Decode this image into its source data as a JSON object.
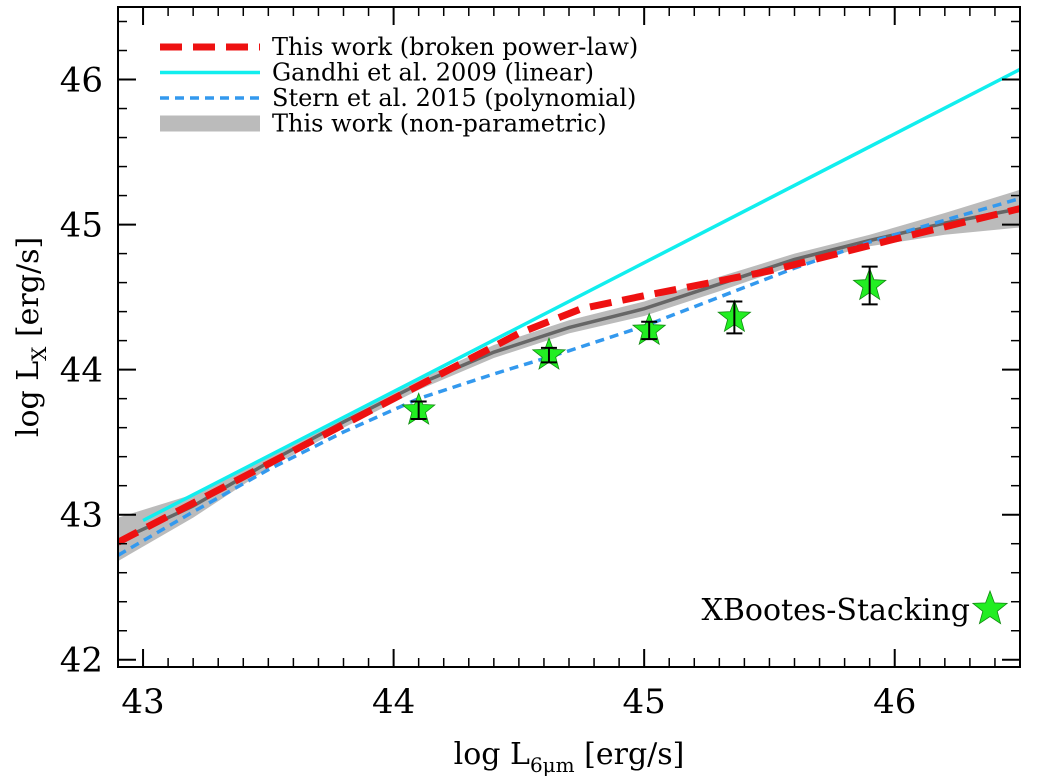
{
  "chart_data": {
    "type": "line",
    "xlabel": {
      "main": "log L",
      "sub": "6μm",
      "unit": " [erg/s]"
    },
    "ylabel": {
      "main": "log L",
      "sub": "X",
      "unit": " [erg/s]"
    },
    "xlim": [
      42.9,
      46.5
    ],
    "ylim": [
      41.95,
      46.5
    ],
    "xticks": [
      43,
      44,
      45,
      46
    ],
    "xtick_labels": [
      "43",
      "44",
      "45",
      "46"
    ],
    "yticks": [
      42,
      43,
      44,
      45,
      46
    ],
    "ytick_labels": [
      "42",
      "43",
      "44",
      "45",
      "46"
    ],
    "x_minor_step": 0.1,
    "y_minor_step": 0.2,
    "grid": false,
    "legend_position": "top-left",
    "legend": [
      {
        "label": "This work (broken power-law)",
        "style": "thick-dashed",
        "color": "#ee1111"
      },
      {
        "label": "Gandhi et al. 2009 (linear)",
        "style": "solid",
        "color": "#11eeee"
      },
      {
        "label": "Stern et al. 2015 (polynomial)",
        "style": "dashed",
        "color": "#3399ee"
      },
      {
        "label": "This work (non-parametric)",
        "style": "band",
        "color": "#bbbbbb"
      }
    ],
    "series": [
      {
        "name": "This work (non-parametric)",
        "kind": "band",
        "color": "#bbbbbb",
        "median_color": "#666666",
        "x": [
          42.9,
          43.2,
          43.5,
          43.8,
          44.1,
          44.4,
          44.7,
          45.0,
          45.3,
          45.6,
          45.9,
          46.2,
          46.5
        ],
        "lower": [
          42.68,
          42.98,
          43.32,
          43.6,
          43.86,
          44.08,
          44.25,
          44.37,
          44.54,
          44.72,
          44.85,
          44.93,
          44.98
        ],
        "upper": [
          42.98,
          43.14,
          43.4,
          43.68,
          43.93,
          44.17,
          44.34,
          44.47,
          44.64,
          44.8,
          44.93,
          45.08,
          45.24
        ],
        "median": [
          42.82,
          43.06,
          43.36,
          43.64,
          43.9,
          44.12,
          44.29,
          44.42,
          44.59,
          44.76,
          44.89,
          45.01,
          45.11
        ]
      },
      {
        "name": "Stern et al. 2015 (polynomial)",
        "kind": "line",
        "color": "#3399ee",
        "x": [
          42.9,
          43.2,
          43.5,
          43.8,
          44.1,
          44.4,
          44.7,
          45.0,
          45.3,
          45.6,
          45.9,
          46.2,
          46.5
        ],
        "y": [
          42.72,
          43.02,
          43.31,
          43.57,
          43.8,
          43.97,
          44.13,
          44.3,
          44.5,
          44.7,
          44.88,
          45.03,
          45.18
        ]
      },
      {
        "name": "Gandhi et al. 2009 (linear)",
        "kind": "line",
        "color": "#11eeee",
        "x": [
          43.0,
          46.5
        ],
        "y": [
          42.96,
          46.07
        ]
      },
      {
        "name": "This work (broken power-law)",
        "kind": "line",
        "color": "#ee1111",
        "x": [
          42.9,
          43.5,
          44.0,
          44.5,
          44.75,
          45.0,
          45.5,
          46.0,
          46.5
        ],
        "y": [
          42.81,
          43.35,
          43.8,
          44.25,
          44.42,
          44.51,
          44.68,
          44.9,
          45.11
        ]
      }
    ],
    "points": {
      "name": "XBootes-Stacking",
      "color": "#22ee22",
      "x": [
        44.1,
        44.62,
        45.02,
        45.36,
        45.9
      ],
      "y": [
        43.72,
        44.1,
        44.27,
        44.36,
        44.58
      ],
      "yerr": [
        0.06,
        0.05,
        0.06,
        0.11,
        0.13
      ]
    },
    "annotation": "XBootes-Stacking"
  }
}
